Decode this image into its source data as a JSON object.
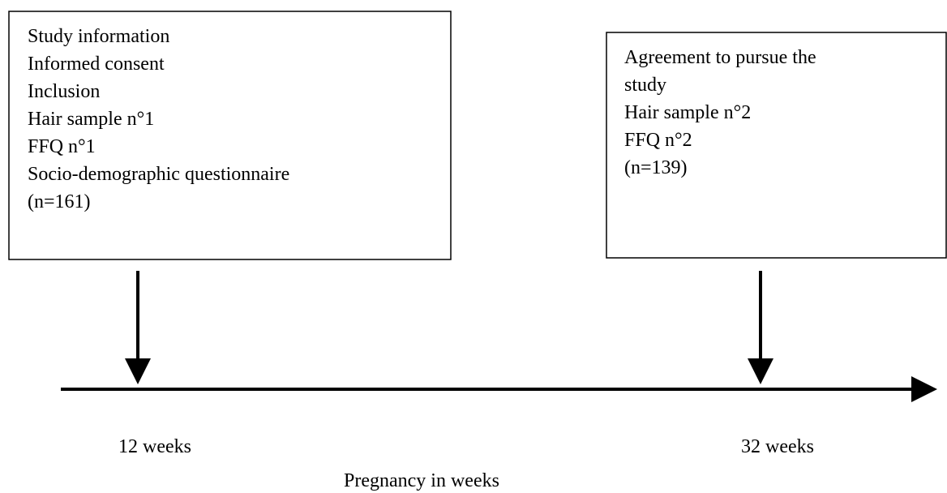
{
  "boxes": [
    {
      "lines": [
        "Study information",
        "Informed consent",
        "Inclusion",
        "Hair sample n°1",
        "FFQ n°1",
        "Socio-demographic questionnaire",
        "(n=161)"
      ]
    },
    {
      "lines": [
        "Agreement to pursue the",
        "study",
        "Hair sample n°2",
        "FFQ n°2",
        "(n=139)"
      ]
    }
  ],
  "timeline": {
    "labels": [
      "12 weeks",
      "32 weeks"
    ],
    "axis_label": "Pregnancy in weeks"
  }
}
